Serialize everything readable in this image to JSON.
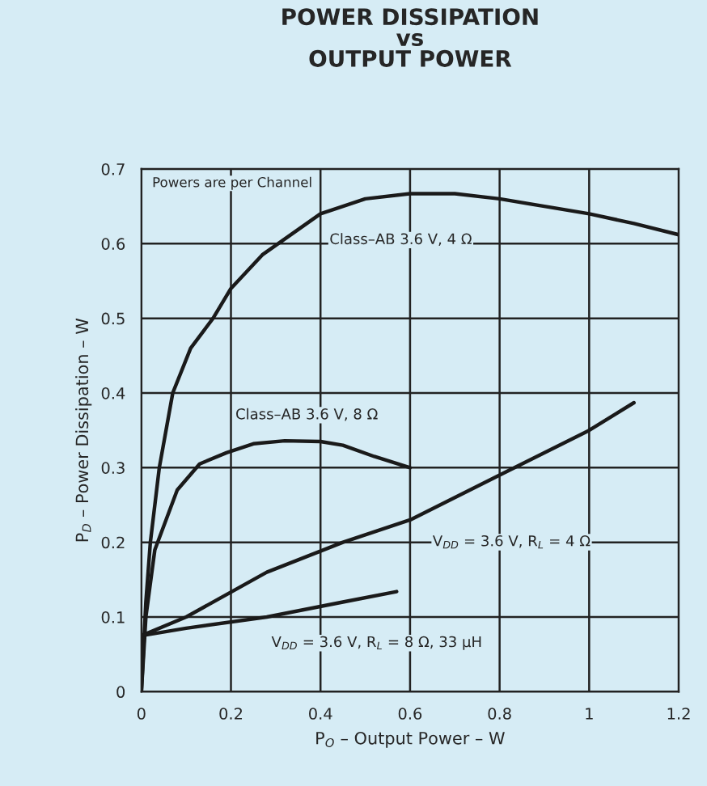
{
  "chart_data": {
    "type": "line",
    "title": "POWER DISSIPATION\nvs\nOUTPUT POWER",
    "xlabel": "P$_{O}$ – Output Power – W",
    "ylabel": "P$_{D}$ – Power Dissipation – W",
    "xlim": [
      0,
      1.2
    ],
    "xticks": [
      0,
      0.2,
      0.4,
      0.6,
      0.8,
      1,
      1.2
    ],
    "ylim": [
      0,
      0.7
    ],
    "yticks": [
      0,
      0.1,
      0.2,
      0.3,
      0.4,
      0.5,
      0.6,
      0.7
    ],
    "grid": true,
    "legend": false,
    "marker": "none",
    "line_style": "solid",
    "annotations": [
      "Powers are per Channel",
      "Class–AB 3.6 V, 4 Ω",
      "Class–AB 3.6 V, 8 Ω",
      "V$_{DD}$ = 3.6 V, R$_{L}$ = 4 Ω",
      "V$_{DD}$ = 3.6 V, R$_{L}$ = 8 Ω, 33 µH"
    ],
    "series": [
      {
        "color": "#1a1a1a",
        "x": [
          0,
          0.01,
          0.02,
          0.04,
          0.07,
          0.11,
          0.16,
          0.2,
          0.27,
          0.4,
          0.5,
          0.6,
          0.7,
          0.8,
          0.9,
          1.0,
          1.1,
          1.2
        ],
        "values": [
          0,
          0.12,
          0.2,
          0.3,
          0.4,
          0.46,
          0.5,
          0.54,
          0.585,
          0.64,
          0.66,
          0.667,
          0.667,
          0.66,
          0.65,
          0.64,
          0.627,
          0.612
        ]
      },
      {
        "color": "#1a1a1a",
        "x": [
          0,
          0.01,
          0.03,
          0.08,
          0.13,
          0.19,
          0.25,
          0.32,
          0.4,
          0.45,
          0.52,
          0.6
        ],
        "values": [
          0,
          0.1,
          0.19,
          0.27,
          0.305,
          0.32,
          0.332,
          0.336,
          0.335,
          0.33,
          0.315,
          0.3
        ]
      },
      {
        "color": "#1a1a1a",
        "x": [
          0,
          0.1,
          0.28,
          0.45,
          0.6,
          0.8,
          1.0,
          1.1
        ],
        "values": [
          0.075,
          0.1,
          0.16,
          0.2,
          0.23,
          0.29,
          0.35,
          0.387
        ]
      },
      {
        "color": "#1a1a1a",
        "x": [
          0,
          0.1,
          0.28,
          0.45,
          0.57
        ],
        "values": [
          0.075,
          0.085,
          0.1,
          0.12,
          0.134
        ]
      }
    ]
  }
}
